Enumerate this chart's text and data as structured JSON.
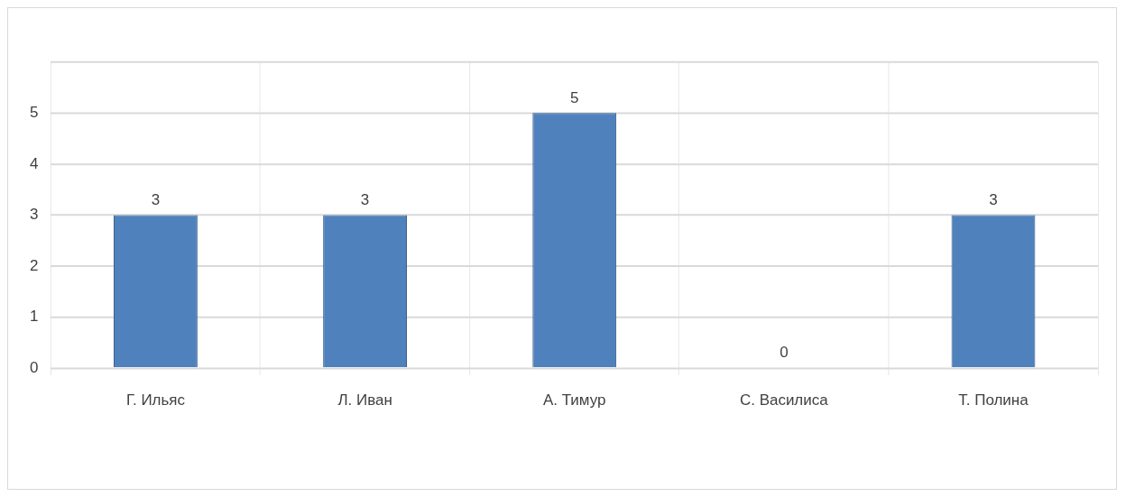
{
  "chart_data": {
    "type": "bar",
    "categories": [
      "Г. Ильяс",
      "Л. Иван",
      "А. Тимур",
      "С. Василиса",
      "Т. Полина"
    ],
    "values": [
      3,
      3,
      5,
      0,
      3
    ],
    "color": "#4f81bd",
    "ylim": [
      0,
      6
    ],
    "yticks": [
      0,
      1,
      2,
      3,
      4,
      5,
      {
        "value": 6,
        "label": null
      }
    ],
    "grid": true,
    "data_labels": true,
    "legend": false
  }
}
